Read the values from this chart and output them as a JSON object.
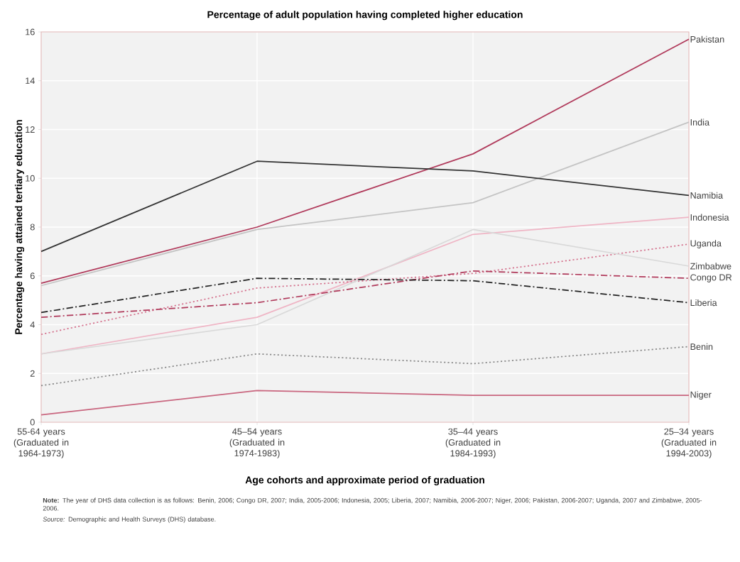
{
  "chart_data": {
    "type": "line",
    "title": "Percentage of adult population having completed higher education",
    "xlabel": "Age cohorts and approximate period of graduation",
    "ylabel": "Percentage having attained tertiary education",
    "categories": [
      "55-64 years (Graduated in 1964-1973)",
      "45–54 years (Graduated in 1974-1983)",
      "35–44 years (Graduated in 1984-1993)",
      "25–34 years (Graduated in 1994-2003)"
    ],
    "ylim": [
      0,
      16
    ],
    "yticks": [
      0,
      2,
      4,
      6,
      8,
      10,
      12,
      14,
      16
    ],
    "grid": true,
    "legend": false,
    "series": [
      {
        "name": "Pakistan",
        "color": "#b03a5b",
        "line_style": "solid",
        "values": [
          5.7,
          8.0,
          11.0,
          15.7
        ]
      },
      {
        "name": "India",
        "color": "#c4c4c4",
        "line_style": "solid",
        "values": [
          5.6,
          7.9,
          9.0,
          12.3
        ]
      },
      {
        "name": "Namibia",
        "color": "#333333",
        "line_style": "solid",
        "values": [
          7.0,
          10.7,
          10.3,
          9.3
        ]
      },
      {
        "name": "Indonesia",
        "color": "#efb5c5",
        "line_style": "solid",
        "values": [
          2.8,
          4.3,
          7.7,
          8.4
        ]
      },
      {
        "name": "Uganda",
        "color": "#d4708c",
        "line_style": "dotted",
        "values": [
          3.6,
          5.5,
          6.1,
          7.3
        ]
      },
      {
        "name": "Zimbabwe",
        "color": "#d9d9d9",
        "line_style": "solid",
        "values": [
          2.8,
          4.0,
          7.9,
          6.4
        ]
      },
      {
        "name": "Congo DR",
        "color": "#b03a5b",
        "line_style": "dashed",
        "values": [
          4.3,
          4.9,
          6.2,
          5.9
        ]
      },
      {
        "name": "Liberia",
        "color": "#222222",
        "line_style": "dashed",
        "values": [
          4.5,
          5.9,
          5.8,
          4.9
        ]
      },
      {
        "name": "Benin",
        "color": "#888888",
        "line_style": "dotted",
        "values": [
          1.5,
          2.8,
          2.4,
          3.1
        ]
      },
      {
        "name": "Niger",
        "color": "#c9667f",
        "line_style": "solid",
        "values": [
          0.3,
          1.3,
          1.1,
          1.1
        ]
      }
    ],
    "annotations": [
      "**Note:** The year of DHS data collection is as follows: Benin, 2006; Congo DR, 2007; India, 2005-2006; Indonesia, 2005; Liberia, 2007; Namibia, 2006-2007; Niger, 2006; Pakistan, 2006-2007; Uganda, 2007 and Zimbabwe, 2005-2006.",
      "*Source:* Demographic and Health Surveys (DHS) database."
    ]
  }
}
